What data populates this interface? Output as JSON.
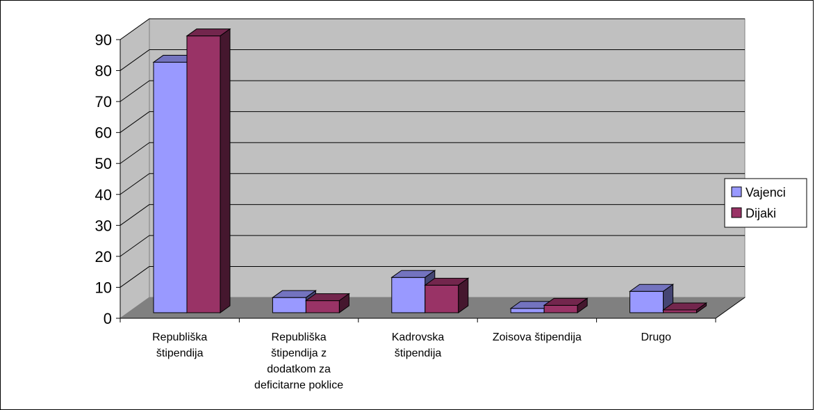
{
  "chart_data": {
    "type": "bar",
    "title": "",
    "xlabel": "",
    "ylabel": "",
    "ylim": [
      0,
      90
    ],
    "yticks": [
      "0",
      "10",
      "20",
      "30",
      "40",
      "50",
      "60",
      "70",
      "80",
      "90"
    ],
    "categories": [
      [
        "Republiška",
        "štipendija"
      ],
      [
        "Republiška",
        "štipendija z",
        "dodatkom za",
        "deficitarne poklice"
      ],
      [
        "Kadrovska",
        "štipendija"
      ],
      [
        "Zoisova štipendija"
      ],
      [
        "Drugo"
      ]
    ],
    "series": [
      {
        "name": "Vajenci",
        "color": "#9999ff",
        "values": [
          80,
          4,
          10.5,
          0.5,
          6
        ]
      },
      {
        "name": "Dijaki",
        "color": "#993366",
        "values": [
          88.5,
          3,
          8,
          1.5,
          0
        ]
      }
    ],
    "grid": true,
    "legend": "right",
    "style": "3d-clustered-column"
  }
}
